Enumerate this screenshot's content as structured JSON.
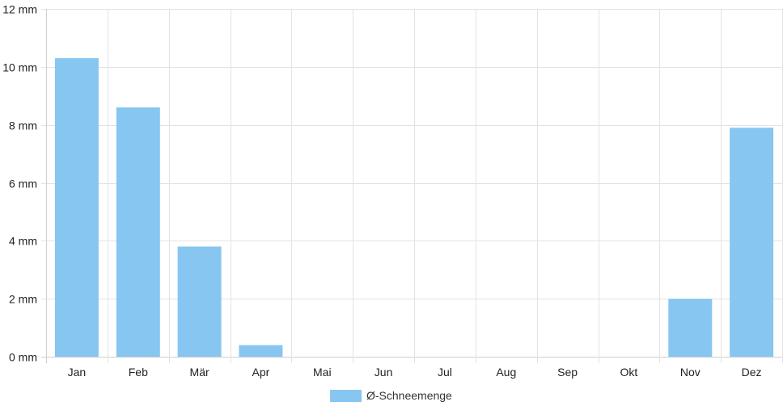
{
  "chart_data": {
    "type": "bar",
    "categories": [
      "Jan",
      "Feb",
      "Mär",
      "Apr",
      "Mai",
      "Jun",
      "Jul",
      "Aug",
      "Sep",
      "Okt",
      "Nov",
      "Dez"
    ],
    "series": [
      {
        "name": "Ø-Schneemenge",
        "values": [
          10.3,
          8.6,
          3.8,
          0.4,
          0,
          0,
          0,
          0,
          0,
          0,
          2.0,
          7.9
        ],
        "color": "#87c6f1"
      }
    ],
    "y_ticks": [
      "0 mm",
      "2 mm",
      "4 mm",
      "6 mm",
      "8 mm",
      "10 mm",
      "12 mm"
    ],
    "ylim": [
      0,
      12
    ],
    "y_unit": "mm",
    "grid": true,
    "legend": "bottom-center"
  }
}
